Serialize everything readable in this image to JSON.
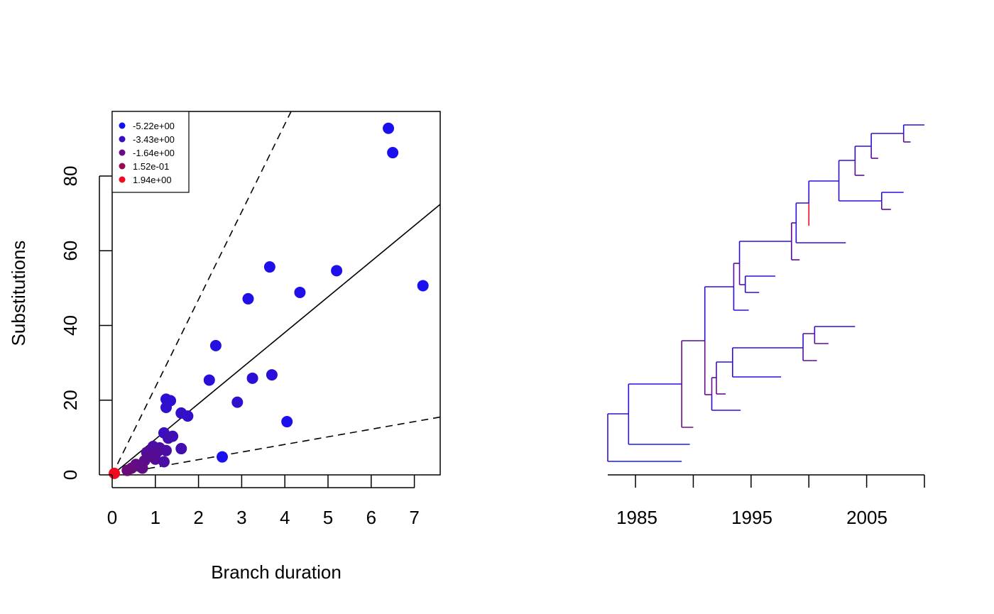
{
  "chart_data": [
    {
      "type": "scatter",
      "xlabel": "Branch duration",
      "ylabel": "Substitutions",
      "xlim": [
        0,
        7.6
      ],
      "ylim": [
        0,
        97
      ],
      "xticks": [
        "0",
        "1",
        "2",
        "3",
        "4",
        "5",
        "6",
        "7"
      ],
      "yticks": [
        "0",
        "20",
        "40",
        "60",
        "80"
      ],
      "grid": false,
      "legend": {
        "placement": "top-left",
        "entries": [
          {
            "label": "-5.22e+00",
            "color": "#1010f5"
          },
          {
            "label": "-3.43e+00",
            "color": "#3a0fc4"
          },
          {
            "label": "-1.64e+00",
            "color": "#6a0c8a"
          },
          {
            "label": "1.52e-01",
            "color": "#9a0a55"
          },
          {
            "label": "1.94e+00",
            "color": "#f20b20"
          }
        ]
      },
      "lines": [
        {
          "style": "solid",
          "slope": 9.5
        },
        {
          "style": "dashed",
          "slope": 23.4
        },
        {
          "style": "dashed",
          "slope": 2.03
        }
      ],
      "points": [
        {
          "x": 6.4,
          "y": 92.5,
          "color": "#1a0ff0"
        },
        {
          "x": 6.5,
          "y": 86.0,
          "color": "#1a0ff0"
        },
        {
          "x": 7.2,
          "y": 50.5,
          "color": "#1a0ff0"
        },
        {
          "x": 3.65,
          "y": 55.5,
          "color": "#1f0fe8"
        },
        {
          "x": 5.2,
          "y": 54.5,
          "color": "#1f0fe8"
        },
        {
          "x": 4.35,
          "y": 48.7,
          "color": "#1f0fe8"
        },
        {
          "x": 3.15,
          "y": 47.0,
          "color": "#200fe6"
        },
        {
          "x": 2.4,
          "y": 34.5,
          "color": "#250fdf"
        },
        {
          "x": 3.7,
          "y": 26.7,
          "color": "#2a0fd8"
        },
        {
          "x": 2.25,
          "y": 25.3,
          "color": "#2a0fd8"
        },
        {
          "x": 3.25,
          "y": 25.8,
          "color": "#2a0fd8"
        },
        {
          "x": 1.25,
          "y": 20.2,
          "color": "#2d0fd2"
        },
        {
          "x": 1.35,
          "y": 19.8,
          "color": "#2d0fd2"
        },
        {
          "x": 1.25,
          "y": 18.0,
          "color": "#300fcd"
        },
        {
          "x": 2.9,
          "y": 19.4,
          "color": "#300fcd"
        },
        {
          "x": 1.6,
          "y": 16.5,
          "color": "#330fc8"
        },
        {
          "x": 1.75,
          "y": 15.7,
          "color": "#330fc8"
        },
        {
          "x": 4.05,
          "y": 14.2,
          "color": "#1c0fee"
        },
        {
          "x": 2.55,
          "y": 4.8,
          "color": "#1c0fee"
        },
        {
          "x": 1.2,
          "y": 11.2,
          "color": "#3a0fc4"
        },
        {
          "x": 1.4,
          "y": 10.3,
          "color": "#3e0eb8"
        },
        {
          "x": 1.3,
          "y": 9.8,
          "color": "#420eb0"
        },
        {
          "x": 0.95,
          "y": 7.6,
          "color": "#4b0da3"
        },
        {
          "x": 1.1,
          "y": 7.2,
          "color": "#4b0da3"
        },
        {
          "x": 1.6,
          "y": 7.0,
          "color": "#420eb0"
        },
        {
          "x": 0.8,
          "y": 6.0,
          "color": "#520d98"
        },
        {
          "x": 1.05,
          "y": 6.2,
          "color": "#520d98"
        },
        {
          "x": 1.25,
          "y": 6.5,
          "color": "#4b0da3"
        },
        {
          "x": 0.9,
          "y": 5.0,
          "color": "#560c92"
        },
        {
          "x": 1.0,
          "y": 4.2,
          "color": "#560c92"
        },
        {
          "x": 1.2,
          "y": 3.5,
          "color": "#4b0da3"
        },
        {
          "x": 0.75,
          "y": 3.8,
          "color": "#5a0c8c"
        },
        {
          "x": 0.55,
          "y": 2.8,
          "color": "#600c86"
        },
        {
          "x": 0.65,
          "y": 2.2,
          "color": "#600c86"
        },
        {
          "x": 0.45,
          "y": 1.8,
          "color": "#660b80"
        },
        {
          "x": 0.35,
          "y": 1.2,
          "color": "#6a0b7a"
        },
        {
          "x": 0.7,
          "y": 1.8,
          "color": "#600c86"
        },
        {
          "x": 0.05,
          "y": 0.4,
          "color": "#f20b20"
        }
      ]
    },
    {
      "type": "tree",
      "xlim": [
        1982.6,
        2010.0
      ],
      "xticks": [
        1985,
        1990,
        1995,
        2000,
        2005,
        2010
      ],
      "xtick_labels": [
        "1985",
        "1995",
        "2005"
      ],
      "branches": [
        {
          "t1": 1984.4,
          "t2": 1985.3,
          "color": "#2f0fd0"
        },
        {
          "t1": 1982.6,
          "t2": 1984.4,
          "color": "#3510c8"
        },
        {
          "t1": 1982.6,
          "t2": 1989.0,
          "color": "#1818ee"
        },
        {
          "t1": 1985.3,
          "t2": 1990.0,
          "color": "#2a10dc"
        },
        {
          "t1": 1985.3,
          "t2": 1992.2,
          "color": "#1a14e6"
        },
        {
          "t1": 1990.0,
          "t2": 1991.3,
          "color": "#4a0fa8"
        },
        {
          "t1": 1990.0,
          "t2": 1991.1,
          "color": "#5a0c9a"
        },
        {
          "t1": 1991.3,
          "t2": 1993.7,
          "color": "#2a10dc"
        },
        {
          "t1": 1991.3,
          "t2": 1991.9,
          "color": "#5a0c9a"
        },
        {
          "t1": 1991.9,
          "t2": 1992.4,
          "color": "#4a0fa8"
        },
        {
          "t1": 1992.4,
          "t2": 1993.9,
          "color": "#2a10dc"
        },
        {
          "t1": 1992.4,
          "t2": 1993.2,
          "color": "#5a0c9a"
        },
        {
          "t1": 1993.9,
          "t2": 2000.0,
          "color": "#2a10dc"
        },
        {
          "t1": 1993.9,
          "t2": 1997.6,
          "color": "#2212e0"
        },
        {
          "t1": 1992.4,
          "t2": 1993.0,
          "color": "#5a0c9a"
        },
        {
          "t1": 2000.0,
          "t2": 2001.2,
          "color": "#2a10dc"
        },
        {
          "t1": 2000.0,
          "t2": 2001.3,
          "color": "#5a0c9a"
        },
        {
          "t1": 2001.2,
          "t2": 2003.7,
          "color": "#2a10dc"
        },
        {
          "t1": 2001.2,
          "t2": 2002.3,
          "color": "#5a0c9a"
        },
        {
          "t1": 1991.3,
          "t2": 1994.1,
          "color": "#2212e0"
        },
        {
          "t1": 1991.3,
          "t2": 1995.1,
          "color": "#2a10dc"
        },
        {
          "t1": 1995.1,
          "t2": 1998.2,
          "color": "#2a10dc"
        },
        {
          "t1": 1995.1,
          "t2": 1996.4,
          "color": "#5a0c9a"
        },
        {
          "t1": 1995.1,
          "t2": 1996.3,
          "color": "#2a10dc"
        },
        {
          "t1": 1995.1,
          "t2": 1995.6,
          "color": "#2a10dc"
        },
        {
          "t1": 1995.1,
          "t2": 1994.3,
          "color": "#5a0c9a"
        }
      ]
    }
  ]
}
